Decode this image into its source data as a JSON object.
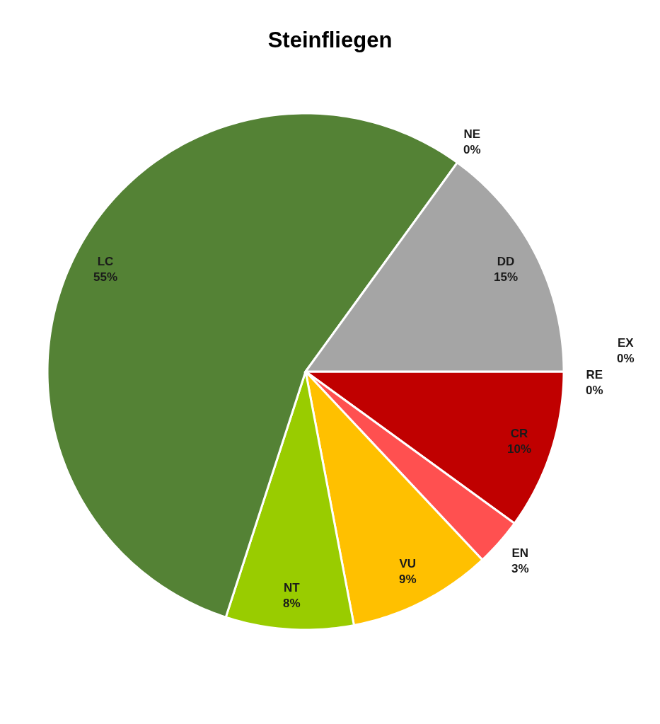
{
  "chart_data": {
    "type": "pie",
    "title": "Steinfliegen",
    "categories": [
      "EX",
      "RE",
      "CR",
      "EN",
      "VU",
      "NT",
      "LC",
      "NE",
      "DD"
    ],
    "values": [
      0,
      0,
      10,
      3,
      9,
      8,
      55,
      0,
      15
    ],
    "value_labels": [
      "0%",
      "0%",
      "10%",
      "3%",
      "9%",
      "8%",
      "55%",
      "0%",
      "15%"
    ],
    "colors": [
      "#000000",
      "#7f7f7f",
      "#c00000",
      "#ff5050",
      "#ffc000",
      "#99cc00",
      "#548235",
      "#ffffff",
      "#a5a5a5"
    ]
  }
}
